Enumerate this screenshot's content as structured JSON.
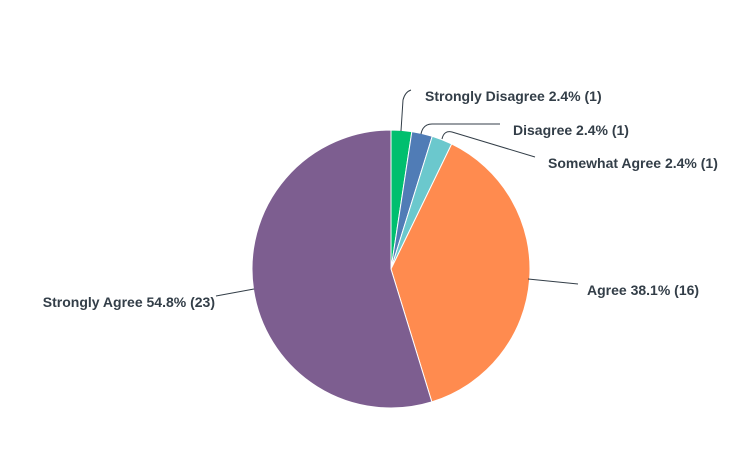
{
  "chart_data": {
    "type": "pie",
    "title": "",
    "start": "top",
    "direction": "clockwise",
    "slices": [
      {
        "label": "Strongly Disagree",
        "percent": 2.4,
        "count": 1,
        "display": "Strongly Disagree 2.4% (1)",
        "color": "#00bf6f"
      },
      {
        "label": "Disagree",
        "percent": 2.4,
        "count": 1,
        "display": "Disagree 2.4% (1)",
        "color": "#507cb6"
      },
      {
        "label": "Somewhat Agree",
        "percent": 2.4,
        "count": 1,
        "display": "Somewhat Agree 2.4% (1)",
        "color": "#6bc8cd"
      },
      {
        "label": "Agree",
        "percent": 38.1,
        "count": 16,
        "display": "Agree 38.1% (16)",
        "color": "#ff8b4f"
      },
      {
        "label": "Strongly Agree",
        "percent": 54.8,
        "count": 23,
        "display": "Strongly Agree 54.8% (23)",
        "color": "#7d5e90"
      }
    ]
  }
}
